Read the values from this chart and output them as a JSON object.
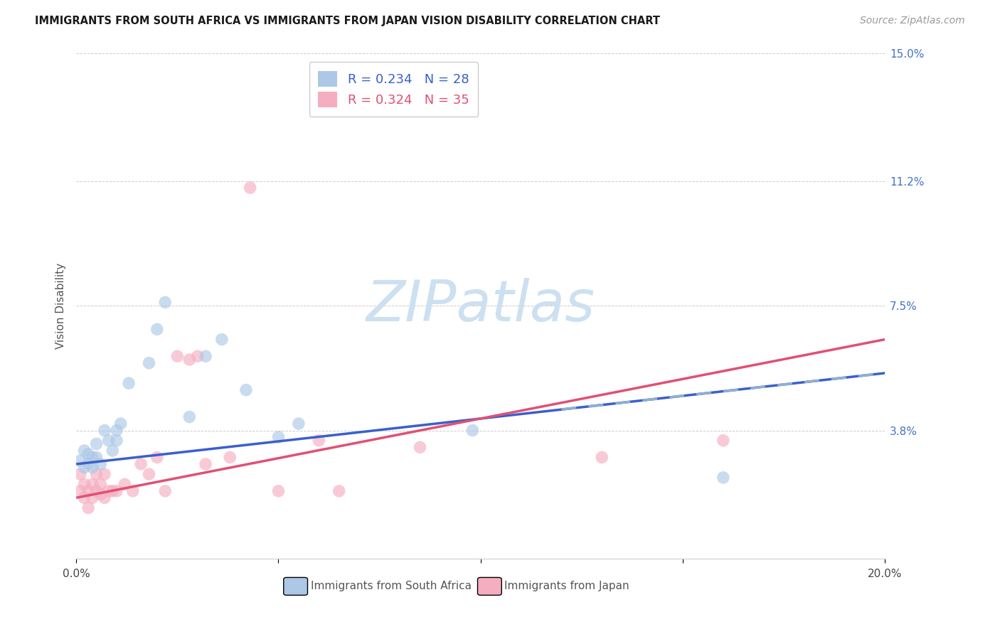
{
  "title": "IMMIGRANTS FROM SOUTH AFRICA VS IMMIGRANTS FROM JAPAN VISION DISABILITY CORRELATION CHART",
  "source": "Source: ZipAtlas.com",
  "ylabel": "Vision Disability",
  "xlim": [
    0.0,
    0.2
  ],
  "ylim": [
    0.0,
    0.15
  ],
  "ytick_vals": [
    0.0,
    0.038,
    0.075,
    0.112,
    0.15
  ],
  "ytick_labels": [
    "",
    "3.8%",
    "7.5%",
    "11.2%",
    "15.0%"
  ],
  "xtick_vals": [
    0.0,
    0.05,
    0.1,
    0.15,
    0.2
  ],
  "xtick_labels": [
    "0.0%",
    "",
    "",
    "",
    "20.0%"
  ],
  "bg_color": "#ffffff",
  "grid_color": "#cccccc",
  "sa_color": "#adc8e6",
  "jp_color": "#f5aec0",
  "sa_line_color": "#3a5fcd",
  "jp_line_color": "#e05075",
  "sa_dash_color": "#aac4e0",
  "R_sa": 0.234,
  "N_sa": 28,
  "R_jp": 0.324,
  "N_jp": 35,
  "sa_x": [
    0.001,
    0.002,
    0.002,
    0.003,
    0.003,
    0.004,
    0.004,
    0.005,
    0.005,
    0.006,
    0.007,
    0.008,
    0.009,
    0.01,
    0.01,
    0.011,
    0.013,
    0.018,
    0.02,
    0.022,
    0.028,
    0.032,
    0.036,
    0.042,
    0.05,
    0.055,
    0.098,
    0.16
  ],
  "sa_y": [
    0.029,
    0.027,
    0.032,
    0.028,
    0.031,
    0.03,
    0.027,
    0.03,
    0.034,
    0.028,
    0.038,
    0.035,
    0.032,
    0.038,
    0.035,
    0.04,
    0.052,
    0.058,
    0.068,
    0.076,
    0.042,
    0.06,
    0.065,
    0.05,
    0.036,
    0.04,
    0.038,
    0.024
  ],
  "jp_x": [
    0.001,
    0.001,
    0.002,
    0.002,
    0.003,
    0.003,
    0.004,
    0.004,
    0.005,
    0.005,
    0.006,
    0.006,
    0.007,
    0.007,
    0.008,
    0.009,
    0.01,
    0.012,
    0.014,
    0.016,
    0.018,
    0.02,
    0.022,
    0.025,
    0.028,
    0.03,
    0.032,
    0.038,
    0.043,
    0.05,
    0.06,
    0.065,
    0.085,
    0.13,
    0.16
  ],
  "jp_y": [
    0.025,
    0.02,
    0.022,
    0.018,
    0.02,
    0.015,
    0.022,
    0.018,
    0.025,
    0.02,
    0.022,
    0.019,
    0.025,
    0.018,
    0.02,
    0.02,
    0.02,
    0.022,
    0.02,
    0.028,
    0.025,
    0.03,
    0.02,
    0.06,
    0.059,
    0.06,
    0.028,
    0.03,
    0.11,
    0.02,
    0.035,
    0.02,
    0.033,
    0.03,
    0.035
  ],
  "watermark_text": "ZIPatlas",
  "watermark_color": "#cce0f0",
  "title_fontsize": 10.5,
  "source_fontsize": 10,
  "legend_fontsize": 13,
  "axis_label_fontsize": 11,
  "tick_fontsize": 11,
  "scatter_size": 160,
  "scatter_alpha": 0.65,
  "line_width": 2.5
}
